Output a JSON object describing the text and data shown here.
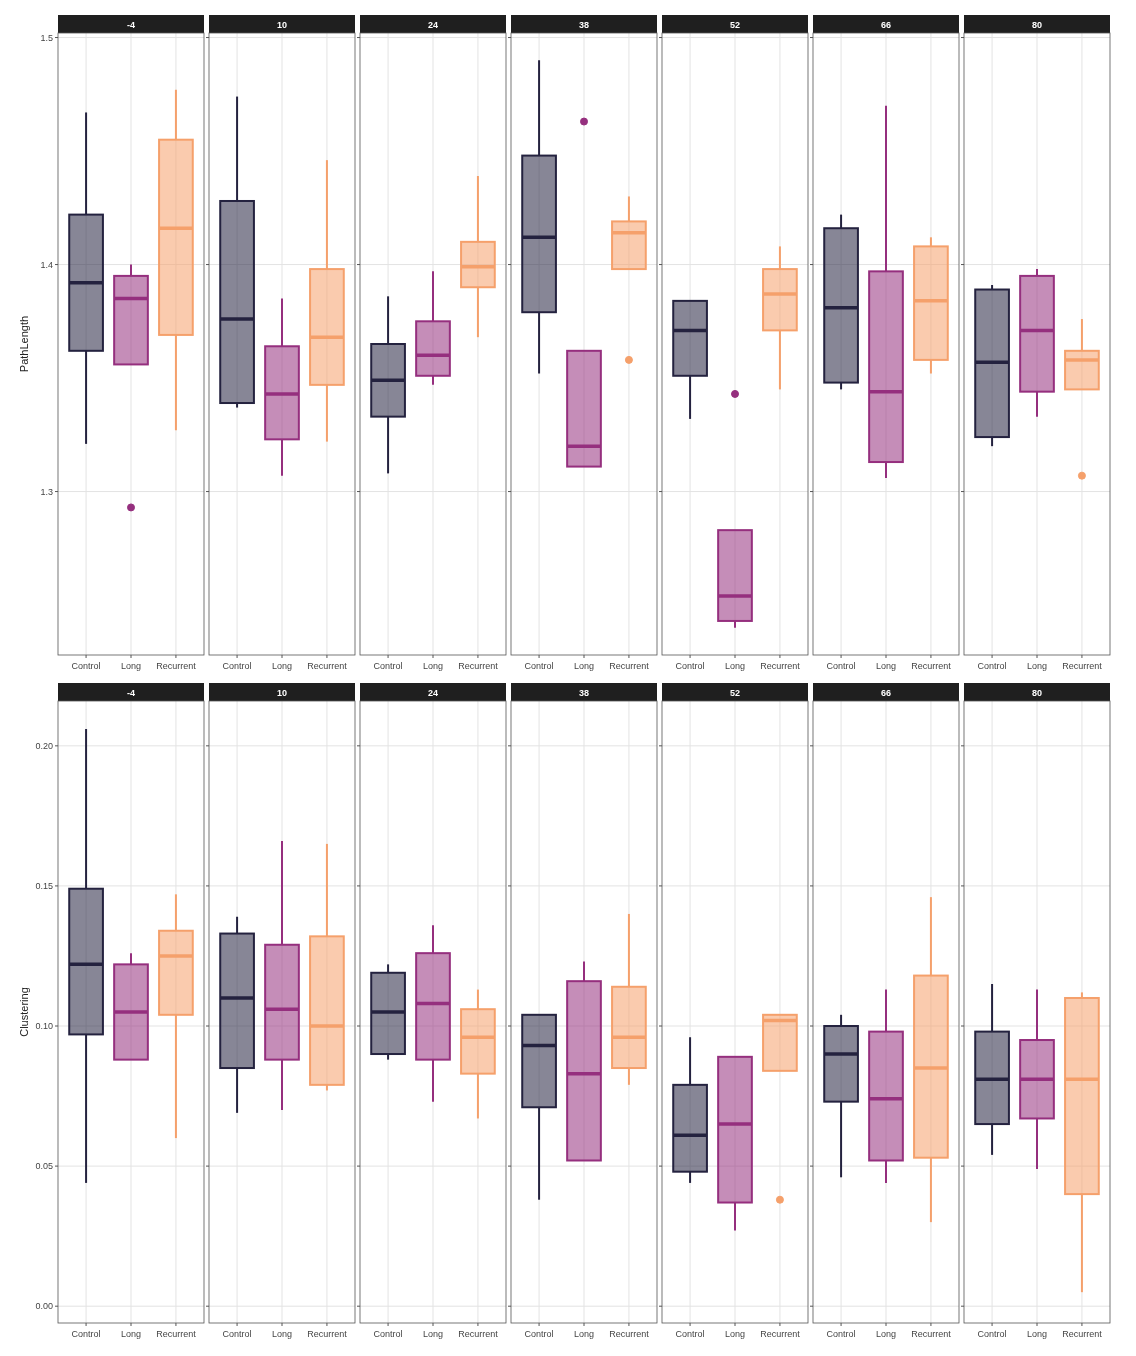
{
  "chart_data": [
    {
      "type": "box",
      "title": "-4",
      "ylabel": "PathLength",
      "categories": [
        "Control",
        "Long",
        "Recurrent"
      ],
      "colors": [
        "#24223f",
        "#952f7e",
        "#f5a06b"
      ],
      "ylim": [
        1.228,
        1.502
      ],
      "yticks": [
        1.3,
        1.4,
        1.5
      ],
      "grid": true,
      "boxes": [
        {
          "low": 1.321,
          "q1": 1.362,
          "median": 1.392,
          "q3": 1.422,
          "high": 1.467
        },
        {
          "low": 1.356,
          "q1": 1.356,
          "median": 1.385,
          "q3": 1.395,
          "high": 1.4,
          "outliers": [
            1.293
          ]
        },
        {
          "low": 1.327,
          "q1": 1.369,
          "median": 1.416,
          "q3": 1.455,
          "high": 1.477
        }
      ]
    },
    {
      "type": "box",
      "title": "10",
      "categories": [
        "Control",
        "Long",
        "Recurrent"
      ],
      "colors": [
        "#24223f",
        "#952f7e",
        "#f5a06b"
      ],
      "ylim": [
        1.228,
        1.502
      ],
      "yticks": [
        1.3,
        1.4,
        1.5
      ],
      "grid": true,
      "tick_labels": "x",
      "boxes": [
        {
          "low": 1.337,
          "q1": 1.339,
          "median": 1.376,
          "q3": 1.428,
          "high": 1.474
        },
        {
          "low": 1.307,
          "q1": 1.323,
          "median": 1.343,
          "q3": 1.364,
          "high": 1.385
        },
        {
          "low": 1.322,
          "q1": 1.347,
          "median": 1.368,
          "q3": 1.398,
          "high": 1.446
        }
      ]
    },
    {
      "type": "box",
      "title": "24",
      "categories": [
        "Control",
        "Long",
        "Recurrent"
      ],
      "colors": [
        "#24223f",
        "#952f7e",
        "#f5a06b"
      ],
      "ylim": [
        1.228,
        1.502
      ],
      "yticks": [
        1.3,
        1.4,
        1.5
      ],
      "grid": true,
      "tick_labels": "x",
      "boxes": [
        {
          "low": 1.308,
          "q1": 1.333,
          "median": 1.349,
          "q3": 1.365,
          "high": 1.386
        },
        {
          "low": 1.347,
          "q1": 1.351,
          "median": 1.36,
          "q3": 1.375,
          "high": 1.397
        },
        {
          "low": 1.368,
          "q1": 1.39,
          "median": 1.399,
          "q3": 1.41,
          "high": 1.439
        }
      ]
    },
    {
      "type": "box",
      "title": "38",
      "categories": [
        "Control",
        "Long",
        "Recurrent"
      ],
      "colors": [
        "#24223f",
        "#952f7e",
        "#f5a06b"
      ],
      "ylim": [
        1.228,
        1.502
      ],
      "yticks": [
        1.3,
        1.4,
        1.5
      ],
      "grid": true,
      "tick_labels": "x",
      "boxes": [
        {
          "low": 1.352,
          "q1": 1.379,
          "median": 1.412,
          "q3": 1.448,
          "high": 1.49
        },
        {
          "low": 1.311,
          "q1": 1.311,
          "median": 1.32,
          "q3": 1.362,
          "high": 1.362,
          "outliers": [
            1.463
          ]
        },
        {
          "low": 1.398,
          "q1": 1.398,
          "median": 1.414,
          "q3": 1.419,
          "high": 1.43,
          "outliers": [
            1.358
          ]
        }
      ]
    },
    {
      "type": "box",
      "title": "52",
      "categories": [
        "Control",
        "Long",
        "Recurrent"
      ],
      "colors": [
        "#24223f",
        "#952f7e",
        "#f5a06b"
      ],
      "ylim": [
        1.228,
        1.502
      ],
      "yticks": [
        1.3,
        1.4,
        1.5
      ],
      "grid": true,
      "tick_labels": "x",
      "boxes": [
        {
          "low": 1.332,
          "q1": 1.351,
          "median": 1.371,
          "q3": 1.384,
          "high": 1.384
        },
        {
          "low": 1.24,
          "q1": 1.243,
          "median": 1.254,
          "q3": 1.283,
          "high": 1.283,
          "outliers": [
            1.343
          ]
        },
        {
          "low": 1.345,
          "q1": 1.371,
          "median": 1.387,
          "q3": 1.398,
          "high": 1.408
        }
      ]
    },
    {
      "type": "box",
      "title": "66",
      "categories": [
        "Control",
        "Long",
        "Recurrent"
      ],
      "colors": [
        "#24223f",
        "#952f7e",
        "#f5a06b"
      ],
      "ylim": [
        1.228,
        1.502
      ],
      "yticks": [
        1.3,
        1.4,
        1.5
      ],
      "grid": true,
      "tick_labels": "x",
      "boxes": [
        {
          "low": 1.345,
          "q1": 1.348,
          "median": 1.381,
          "q3": 1.416,
          "high": 1.422
        },
        {
          "low": 1.306,
          "q1": 1.313,
          "median": 1.344,
          "q3": 1.397,
          "high": 1.47
        },
        {
          "low": 1.352,
          "q1": 1.358,
          "median": 1.384,
          "q3": 1.408,
          "high": 1.412
        }
      ]
    },
    {
      "type": "box",
      "title": "80",
      "categories": [
        "Control",
        "Long",
        "Recurrent"
      ],
      "colors": [
        "#24223f",
        "#952f7e",
        "#f5a06b"
      ],
      "ylim": [
        1.228,
        1.502
      ],
      "yticks": [
        1.3,
        1.4,
        1.5
      ],
      "grid": true,
      "tick_labels": "x",
      "boxes": [
        {
          "low": 1.32,
          "q1": 1.324,
          "median": 1.357,
          "q3": 1.389,
          "high": 1.391
        },
        {
          "low": 1.333,
          "q1": 1.344,
          "median": 1.371,
          "q3": 1.395,
          "high": 1.398
        },
        {
          "low": 1.345,
          "q1": 1.345,
          "median": 1.358,
          "q3": 1.362,
          "high": 1.376,
          "outliers": [
            1.307
          ]
        }
      ]
    },
    {
      "type": "box",
      "title": "-4",
      "ylabel": "Clustering",
      "categories": [
        "Control",
        "Long",
        "Recurrent"
      ],
      "colors": [
        "#24223f",
        "#952f7e",
        "#f5a06b"
      ],
      "ylim": [
        -0.006,
        0.216
      ],
      "yticks": [
        {
          "value": 0,
          "label": "0.00"
        },
        {
          "value": 0.05,
          "label": "0.05"
        },
        {
          "value": 0.1,
          "label": "0.10"
        },
        {
          "value": 0.15,
          "label": "0.15"
        },
        {
          "value": 0.2,
          "label": "0.20"
        }
      ],
      "grid": true,
      "boxes": [
        {
          "low": 0.044,
          "q1": 0.097,
          "median": 0.122,
          "q3": 0.149,
          "high": 0.206
        },
        {
          "low": 0.088,
          "q1": 0.088,
          "median": 0.105,
          "q3": 0.122,
          "high": 0.126
        },
        {
          "low": 0.06,
          "q1": 0.104,
          "median": 0.125,
          "q3": 0.134,
          "high": 0.147
        }
      ]
    },
    {
      "type": "box",
      "title": "10",
      "categories": [
        "Control",
        "Long",
        "Recurrent"
      ],
      "colors": [
        "#24223f",
        "#952f7e",
        "#f5a06b"
      ],
      "ylim": [
        -0.006,
        0.216
      ],
      "yticks": [
        0,
        0.05,
        0.1,
        0.15,
        0.2
      ],
      "grid": true,
      "tick_labels": "x",
      "boxes": [
        {
          "low": 0.069,
          "q1": 0.085,
          "median": 0.11,
          "q3": 0.133,
          "high": 0.139
        },
        {
          "low": 0.07,
          "q1": 0.088,
          "median": 0.106,
          "q3": 0.129,
          "high": 0.166
        },
        {
          "low": 0.077,
          "q1": 0.079,
          "median": 0.1,
          "q3": 0.132,
          "high": 0.165
        }
      ]
    },
    {
      "type": "box",
      "title": "24",
      "categories": [
        "Control",
        "Long",
        "Recurrent"
      ],
      "colors": [
        "#24223f",
        "#952f7e",
        "#f5a06b"
      ],
      "ylim": [
        -0.006,
        0.216
      ],
      "yticks": [
        0,
        0.05,
        0.1,
        0.15,
        0.2
      ],
      "grid": true,
      "tick_labels": "x",
      "boxes": [
        {
          "low": 0.088,
          "q1": 0.09,
          "median": 0.105,
          "q3": 0.119,
          "high": 0.122
        },
        {
          "low": 0.073,
          "q1": 0.088,
          "median": 0.108,
          "q3": 0.126,
          "high": 0.136
        },
        {
          "low": 0.067,
          "q1": 0.083,
          "median": 0.096,
          "q3": 0.106,
          "high": 0.113
        }
      ]
    },
    {
      "type": "box",
      "title": "38",
      "categories": [
        "Control",
        "Long",
        "Recurrent"
      ],
      "colors": [
        "#24223f",
        "#952f7e",
        "#f5a06b"
      ],
      "ylim": [
        -0.006,
        0.216
      ],
      "yticks": [
        0,
        0.05,
        0.1,
        0.15,
        0.2
      ],
      "grid": true,
      "tick_labels": "x",
      "boxes": [
        {
          "low": 0.038,
          "q1": 0.071,
          "median": 0.093,
          "q3": 0.104,
          "high": 0.104
        },
        {
          "low": 0.052,
          "q1": 0.052,
          "median": 0.083,
          "q3": 0.116,
          "high": 0.123
        },
        {
          "low": 0.079,
          "q1": 0.085,
          "median": 0.096,
          "q3": 0.114,
          "high": 0.14
        }
      ]
    },
    {
      "type": "box",
      "title": "52",
      "categories": [
        "Control",
        "Long",
        "Recurrent"
      ],
      "colors": [
        "#24223f",
        "#952f7e",
        "#f5a06b"
      ],
      "ylim": [
        -0.006,
        0.216
      ],
      "yticks": [
        0,
        0.05,
        0.1,
        0.15,
        0.2
      ],
      "grid": true,
      "tick_labels": "x",
      "boxes": [
        {
          "low": 0.044,
          "q1": 0.048,
          "median": 0.061,
          "q3": 0.079,
          "high": 0.096
        },
        {
          "low": 0.027,
          "q1": 0.037,
          "median": 0.065,
          "q3": 0.089,
          "high": 0.089
        },
        {
          "low": 0.084,
          "q1": 0.084,
          "median": 0.102,
          "q3": 0.104,
          "high": 0.104,
          "outliers": [
            0.038
          ]
        }
      ]
    },
    {
      "type": "box",
      "title": "66",
      "categories": [
        "Control",
        "Long",
        "Recurrent"
      ],
      "colors": [
        "#24223f",
        "#952f7e",
        "#f5a06b"
      ],
      "ylim": [
        -0.006,
        0.216
      ],
      "yticks": [
        0,
        0.05,
        0.1,
        0.15,
        0.2
      ],
      "grid": true,
      "tick_labels": "x",
      "boxes": [
        {
          "low": 0.046,
          "q1": 0.073,
          "median": 0.09,
          "q3": 0.1,
          "high": 0.104
        },
        {
          "low": 0.044,
          "q1": 0.052,
          "median": 0.074,
          "q3": 0.098,
          "high": 0.113
        },
        {
          "low": 0.03,
          "q1": 0.053,
          "median": 0.085,
          "q3": 0.118,
          "high": 0.146
        }
      ]
    },
    {
      "type": "box",
      "title": "80",
      "categories": [
        "Control",
        "Long",
        "Recurrent"
      ],
      "colors": [
        "#24223f",
        "#952f7e",
        "#f5a06b"
      ],
      "ylim": [
        -0.006,
        0.216
      ],
      "yticks": [
        0,
        0.05,
        0.1,
        0.15,
        0.2
      ],
      "grid": true,
      "tick_labels": "x",
      "boxes": [
        {
          "low": 0.054,
          "q1": 0.065,
          "median": 0.081,
          "q3": 0.098,
          "high": 0.115
        },
        {
          "low": 0.049,
          "q1": 0.067,
          "median": 0.081,
          "q3": 0.095,
          "high": 0.113
        },
        {
          "low": 0.005,
          "q1": 0.04,
          "median": 0.081,
          "q3": 0.11,
          "high": 0.112
        }
      ]
    }
  ]
}
